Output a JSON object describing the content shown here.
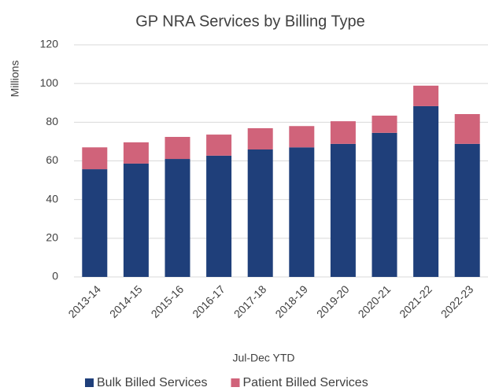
{
  "chart_data": {
    "type": "stacked_bar",
    "title": "GP NRA Services by Billing Type",
    "y_label": "Millions",
    "x_label": "Jul-Dec YTD",
    "categories": [
      "2013-14",
      "2014-15",
      "2015-16",
      "2016-17",
      "2017-18",
      "2018-19",
      "2019-20",
      "2020-21",
      "2021-22",
      "2022-23"
    ],
    "series": [
      {
        "name": "Bulk Billed Services",
        "color": "#1f3f7a",
        "values": [
          55.7,
          58.6,
          61,
          62.7,
          65.9,
          67,
          68.8,
          74.5,
          88.3,
          68.8
        ]
      },
      {
        "name": "Patient Billed Services",
        "color": "#d0637a",
        "values": [
          11.3,
          11,
          11.4,
          10.9,
          11,
          11,
          11.7,
          8.9,
          10.6,
          15.4
        ]
      }
    ],
    "ylim": [
      0,
      120
    ],
    "yticks": [
      0,
      20,
      40,
      60,
      80,
      100,
      120
    ],
    "grid": true,
    "legend": "bottom"
  }
}
